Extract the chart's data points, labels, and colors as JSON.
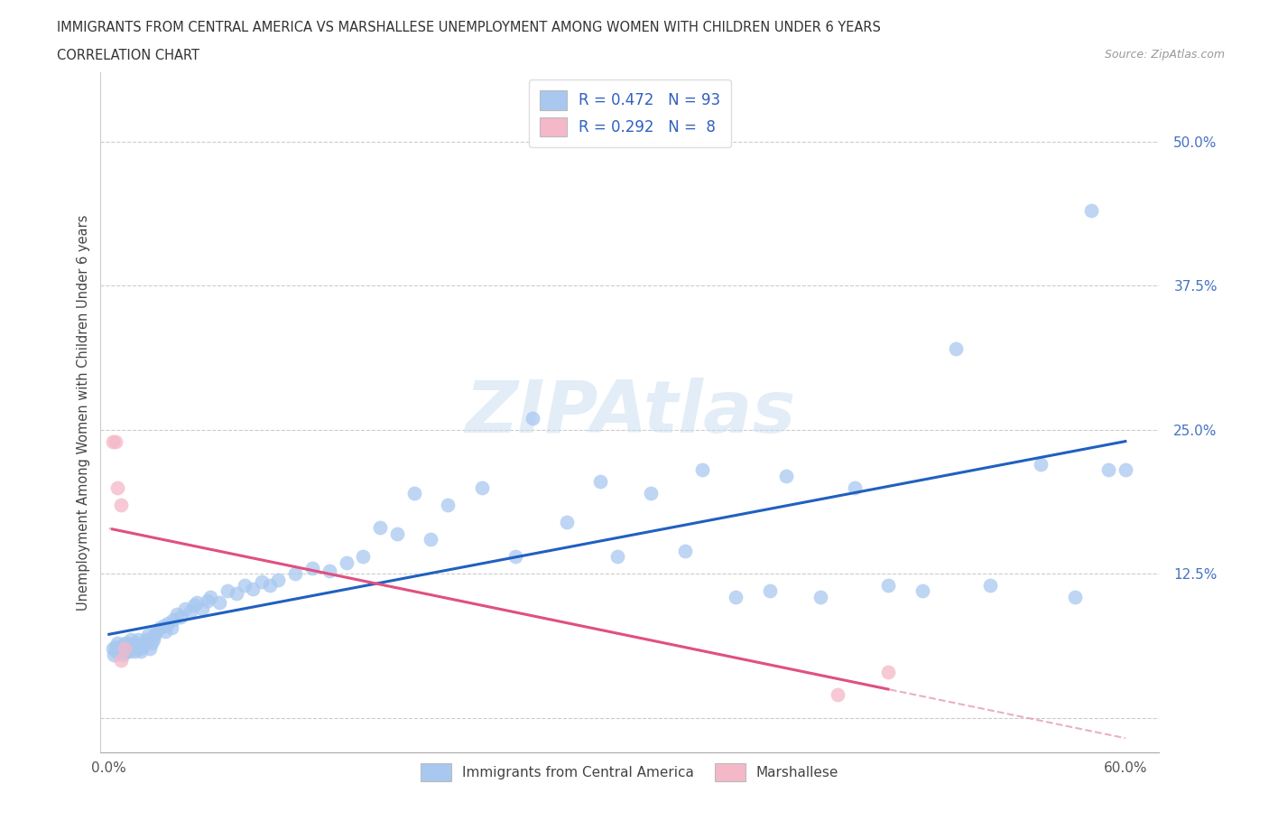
{
  "title_line1": "IMMIGRANTS FROM CENTRAL AMERICA VS MARSHALLESE UNEMPLOYMENT AMONG WOMEN WITH CHILDREN UNDER 6 YEARS",
  "title_line2": "CORRELATION CHART",
  "source": "Source: ZipAtlas.com",
  "ylabel": "Unemployment Among Women with Children Under 6 years",
  "xlim": [
    -0.005,
    0.62
  ],
  "ylim": [
    -0.03,
    0.56
  ],
  "yticks": [
    0.0,
    0.125,
    0.25,
    0.375,
    0.5
  ],
  "ytick_labels": [
    "",
    "12.5%",
    "25.0%",
    "37.5%",
    "50.0%"
  ],
  "xticks": [
    0.0,
    0.1,
    0.2,
    0.3,
    0.4,
    0.5,
    0.6
  ],
  "xtick_labels": [
    "0.0%",
    "",
    "",
    "",
    "",
    "",
    "60.0%"
  ],
  "watermark": "ZIPAtlas",
  "blue_R": 0.472,
  "blue_N": 93,
  "pink_R": 0.292,
  "pink_N": 8,
  "blue_color": "#a8c8f0",
  "pink_color": "#f4b8c8",
  "trend_blue": "#2060c0",
  "trend_pink": "#e05080",
  "trend_pink_dash": "#e090a8",
  "blue_scatter_x": [
    0.002,
    0.003,
    0.004,
    0.004,
    0.005,
    0.005,
    0.006,
    0.007,
    0.007,
    0.008,
    0.008,
    0.009,
    0.009,
    0.01,
    0.01,
    0.01,
    0.011,
    0.012,
    0.012,
    0.013,
    0.013,
    0.014,
    0.015,
    0.015,
    0.016,
    0.017,
    0.018,
    0.019,
    0.02,
    0.021,
    0.022,
    0.023,
    0.024,
    0.025,
    0.026,
    0.027,
    0.028,
    0.03,
    0.032,
    0.033,
    0.035,
    0.037,
    0.038,
    0.04,
    0.042,
    0.045,
    0.048,
    0.05,
    0.052,
    0.055,
    0.058,
    0.06,
    0.065,
    0.07,
    0.075,
    0.08,
    0.085,
    0.09,
    0.095,
    0.1,
    0.11,
    0.12,
    0.13,
    0.14,
    0.15,
    0.16,
    0.17,
    0.18,
    0.19,
    0.2,
    0.22,
    0.24,
    0.25,
    0.27,
    0.29,
    0.3,
    0.32,
    0.34,
    0.35,
    0.37,
    0.39,
    0.4,
    0.42,
    0.44,
    0.46,
    0.48,
    0.5,
    0.52,
    0.55,
    0.57,
    0.58,
    0.59,
    0.6
  ],
  "blue_scatter_y": [
    0.06,
    0.055,
    0.058,
    0.062,
    0.058,
    0.065,
    0.06,
    0.058,
    0.062,
    0.055,
    0.06,
    0.058,
    0.065,
    0.062,
    0.06,
    0.058,
    0.065,
    0.06,
    0.058,
    0.062,
    0.068,
    0.06,
    0.058,
    0.062,
    0.065,
    0.068,
    0.06,
    0.058,
    0.062,
    0.065,
    0.068,
    0.072,
    0.06,
    0.065,
    0.068,
    0.072,
    0.075,
    0.078,
    0.08,
    0.075,
    0.082,
    0.078,
    0.085,
    0.09,
    0.088,
    0.095,
    0.092,
    0.098,
    0.1,
    0.095,
    0.102,
    0.105,
    0.1,
    0.11,
    0.108,
    0.115,
    0.112,
    0.118,
    0.115,
    0.12,
    0.125,
    0.13,
    0.128,
    0.135,
    0.14,
    0.165,
    0.16,
    0.195,
    0.155,
    0.185,
    0.2,
    0.14,
    0.26,
    0.17,
    0.205,
    0.14,
    0.195,
    0.145,
    0.215,
    0.105,
    0.11,
    0.21,
    0.105,
    0.2,
    0.115,
    0.11,
    0.32,
    0.115,
    0.22,
    0.105,
    0.44,
    0.215,
    0.215
  ],
  "pink_scatter_x": [
    0.002,
    0.004,
    0.005,
    0.007,
    0.007,
    0.009,
    0.43,
    0.46
  ],
  "pink_scatter_y": [
    0.24,
    0.24,
    0.2,
    0.185,
    0.05,
    0.06,
    0.02,
    0.04
  ]
}
